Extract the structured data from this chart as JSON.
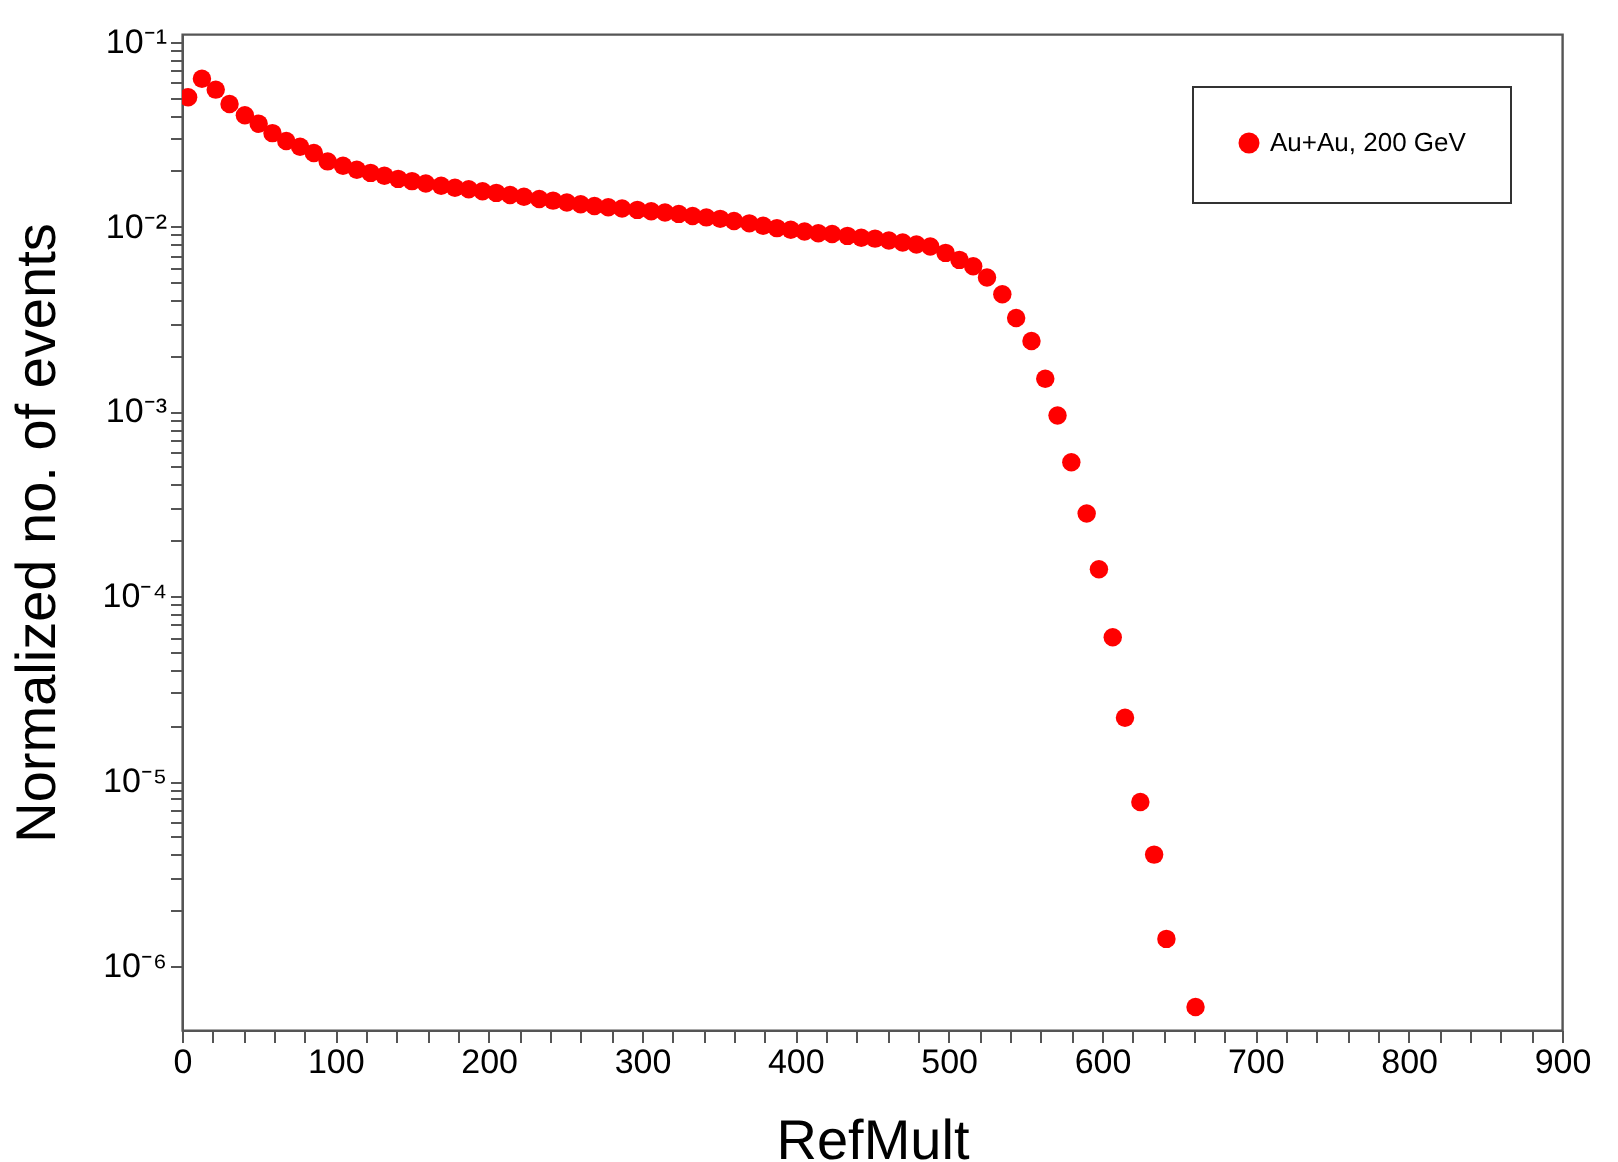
{
  "chart_data": {
    "type": "scatter",
    "xlabel": "RefMult",
    "ylabel": "Normalized no. of events",
    "log": "y",
    "legend": "top right",
    "marker": "circle",
    "grid": false,
    "xlim": [
      0,
      900
    ],
    "ylim": [
      4.5e-07,
      0.11
    ],
    "xticks": [
      0,
      {
        "value": 20,
        "label": null
      },
      {
        "value": 40,
        "label": null
      },
      {
        "value": 60,
        "label": null
      },
      {
        "value": 80,
        "label": null
      },
      100,
      {
        "value": 120,
        "label": null
      },
      {
        "value": 140,
        "label": null
      },
      {
        "value": 160,
        "label": null
      },
      {
        "value": 180,
        "label": null
      },
      200,
      {
        "value": 220,
        "label": null
      },
      {
        "value": 240,
        "label": null
      },
      {
        "value": 260,
        "label": null
      },
      {
        "value": 280,
        "label": null
      },
      300,
      {
        "value": 320,
        "label": null
      },
      {
        "value": 340,
        "label": null
      },
      {
        "value": 360,
        "label": null
      },
      {
        "value": 380,
        "label": null
      },
      400,
      {
        "value": 420,
        "label": null
      },
      {
        "value": 440,
        "label": null
      },
      {
        "value": 460,
        "label": null
      },
      {
        "value": 480,
        "label": null
      },
      500,
      {
        "value": 520,
        "label": null
      },
      {
        "value": 540,
        "label": null
      },
      {
        "value": 560,
        "label": null
      },
      {
        "value": 580,
        "label": null
      },
      600,
      {
        "value": 620,
        "label": null
      },
      {
        "value": 640,
        "label": null
      },
      {
        "value": 660,
        "label": null
      },
      {
        "value": 680,
        "label": null
      },
      700,
      {
        "value": 720,
        "label": null
      },
      {
        "value": 740,
        "label": null
      },
      {
        "value": 760,
        "label": null
      },
      {
        "value": 780,
        "label": null
      },
      800,
      {
        "value": 820,
        "label": null
      },
      {
        "value": 840,
        "label": null
      },
      {
        "value": 860,
        "label": null
      },
      {
        "value": 880,
        "label": null
      },
      900
    ],
    "yticks": [
      {
        "value": 1e-06,
        "label": "10⁻⁶"
      },
      {
        "value": 2e-06,
        "label": null
      },
      {
        "value": 3e-06,
        "label": null
      },
      {
        "value": 4e-06,
        "label": null
      },
      {
        "value": 5e-06,
        "label": null
      },
      {
        "value": 6e-06,
        "label": null
      },
      {
        "value": 7e-06,
        "label": null
      },
      {
        "value": 8e-06,
        "label": null
      },
      {
        "value": 9e-06,
        "label": null
      },
      {
        "value": 1e-05,
        "label": "10⁻⁵"
      },
      {
        "value": 2e-05,
        "label": null
      },
      {
        "value": 3e-05,
        "label": null
      },
      {
        "value": 4e-05,
        "label": null
      },
      {
        "value": 5e-05,
        "label": null
      },
      {
        "value": 6e-05,
        "label": null
      },
      {
        "value": 7e-05,
        "label": null
      },
      {
        "value": 8e-05,
        "label": null
      },
      {
        "value": 9e-05,
        "label": null
      },
      {
        "value": 0.0001,
        "label": "10⁻⁴"
      },
      {
        "value": 0.0002,
        "label": null
      },
      {
        "value": 0.0003,
        "label": null
      },
      {
        "value": 0.0004,
        "label": null
      },
      {
        "value": 0.0005,
        "label": null
      },
      {
        "value": 0.0006,
        "label": null
      },
      {
        "value": 0.0007,
        "label": null
      },
      {
        "value": 0.0008,
        "label": null
      },
      {
        "value": 0.0009,
        "label": null
      },
      {
        "value": 0.001,
        "label": "10⁻³"
      },
      {
        "value": 0.002,
        "label": null
      },
      {
        "value": 0.003,
        "label": null
      },
      {
        "value": 0.004,
        "label": null
      },
      {
        "value": 0.005,
        "label": null
      },
      {
        "value": 0.006,
        "label": null
      },
      {
        "value": 0.007,
        "label": null
      },
      {
        "value": 0.008,
        "label": null
      },
      {
        "value": 0.009,
        "label": null
      },
      {
        "value": 0.01,
        "label": "10⁻²"
      },
      {
        "value": 0.02,
        "label": null
      },
      {
        "value": 0.03,
        "label": null
      },
      {
        "value": 0.04,
        "label": null
      },
      {
        "value": 0.05,
        "label": null
      },
      {
        "value": 0.06,
        "label": null
      },
      {
        "value": 0.07,
        "label": null
      },
      {
        "value": 0.08,
        "label": null
      },
      {
        "value": 0.09,
        "label": null
      },
      {
        "value": 0.1,
        "label": "10⁻¹"
      }
    ],
    "series": [
      {
        "name": "Au+Au, 200 GeV",
        "color": "#ff0000",
        "x": [
          4,
          13,
          22,
          31,
          41,
          50,
          59,
          68,
          77,
          86,
          95,
          105,
          114,
          123,
          132,
          141,
          150,
          159,
          169,
          178,
          187,
          196,
          205,
          214,
          223,
          233,
          242,
          251,
          260,
          269,
          278,
          287,
          297,
          306,
          315,
          324,
          333,
          342,
          351,
          360,
          370,
          379,
          388,
          397,
          406,
          415,
          424,
          434,
          443,
          452,
          461,
          470,
          479,
          488,
          498,
          507,
          516,
          525,
          535,
          544,
          554,
          563,
          571,
          580,
          590,
          598,
          607,
          615,
          625,
          634,
          642,
          661
        ],
        "values": [
          0.05,
          0.063,
          0.055,
          0.046,
          0.04,
          0.036,
          0.032,
          0.029,
          0.027,
          0.025,
          0.0225,
          0.0213,
          0.0203,
          0.0195,
          0.0188,
          0.0181,
          0.0176,
          0.0171,
          0.0166,
          0.0162,
          0.0159,
          0.0155,
          0.0152,
          0.0148,
          0.0145,
          0.0141,
          0.0138,
          0.0135,
          0.0132,
          0.0129,
          0.0127,
          0.0125,
          0.0123,
          0.0121,
          0.0119,
          0.0117,
          0.0114,
          0.0112,
          0.011,
          0.0107,
          0.0104,
          0.0101,
          0.0098,
          0.0096,
          0.0094,
          0.0092,
          0.0091,
          0.0089,
          0.0087,
          0.0086,
          0.0084,
          0.0082,
          0.008,
          0.0078,
          0.0072,
          0.0066,
          0.0061,
          0.0053,
          0.0043,
          0.0032,
          0.0024,
          0.0015,
          0.00095,
          0.00053,
          0.00028,
          0.00014,
          6e-05,
          2.2e-05,
          7.7e-06,
          4e-06,
          1.4e-06,
          6e-07
        ]
      }
    ]
  }
}
